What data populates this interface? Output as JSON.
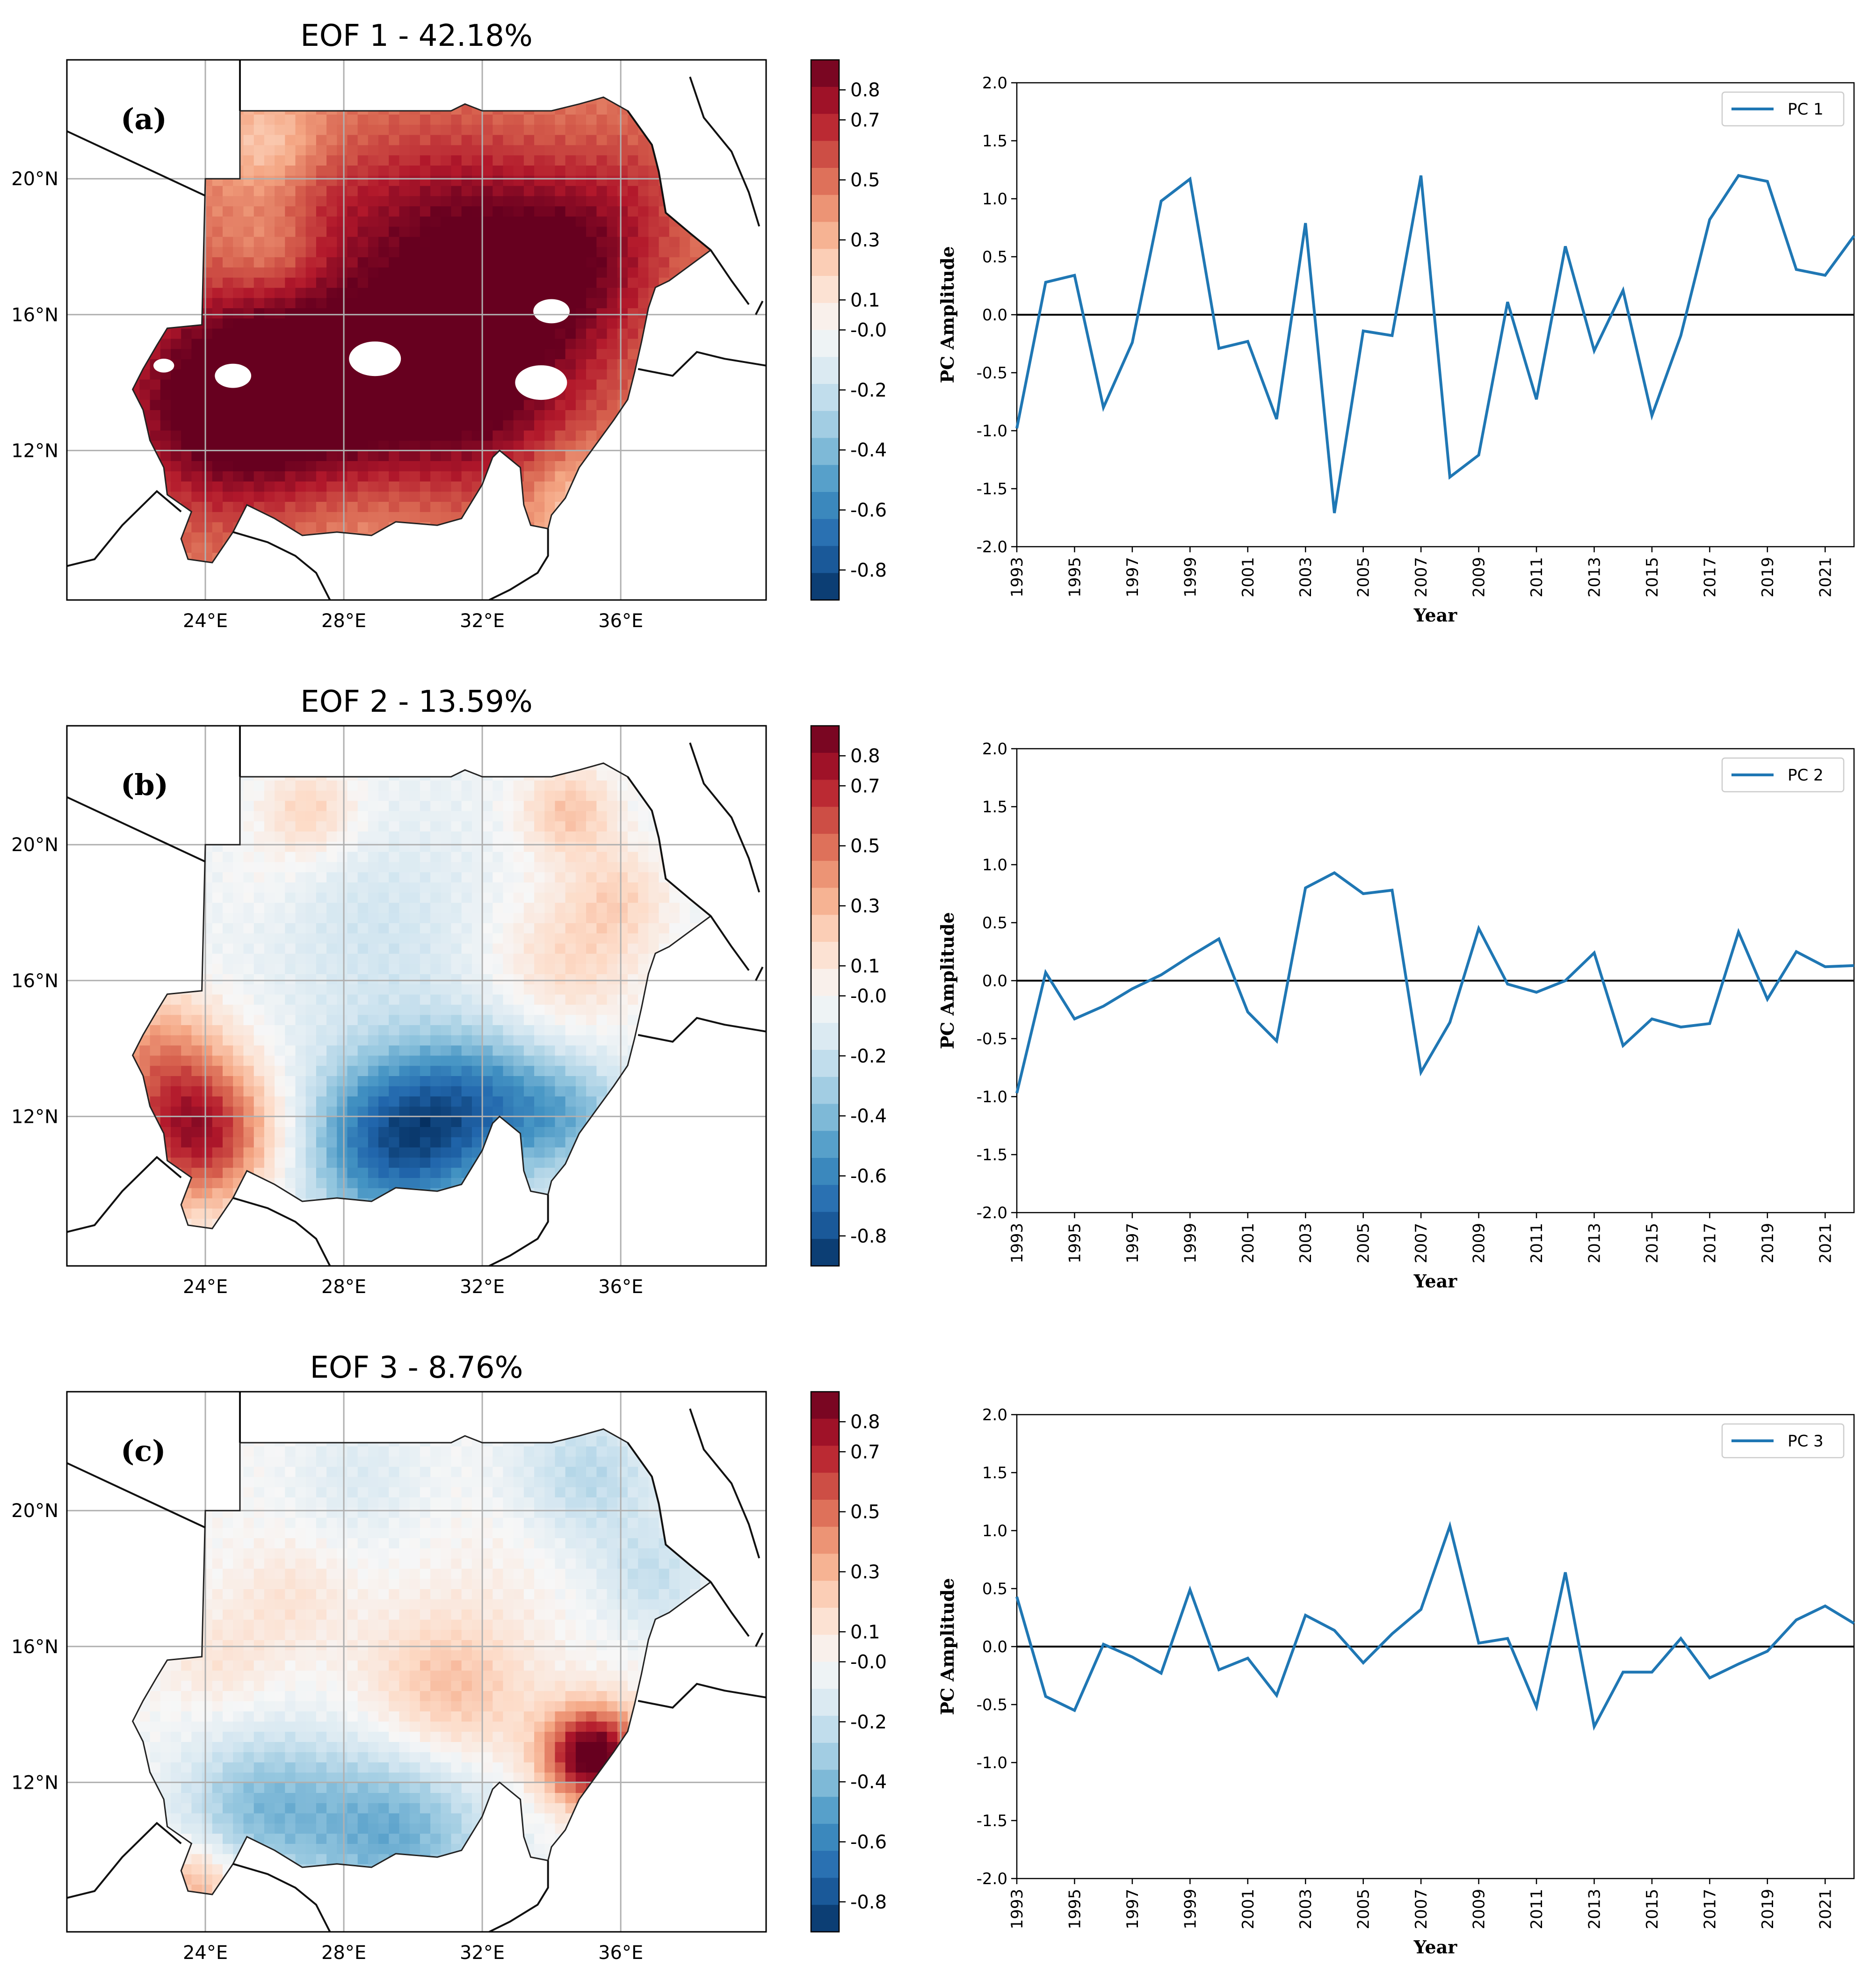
{
  "map_panels": [
    {
      "title": "EOF 1 - 42.18%",
      "tag": "(a)",
      "pattern": "eof1",
      "colorbar_ticks": [
        "0.8",
        "0.7",
        "0.5",
        "0.3",
        "0.1",
        "-0.0",
        "-0.2",
        "-0.4",
        "-0.6",
        "-0.8"
      ],
      "lat_labels": [
        "20°N",
        "16°N",
        "12°N"
      ],
      "lon_labels": [
        "24°E",
        "28°E",
        "32°E",
        "36°E"
      ]
    },
    {
      "title": "EOF 2 - 13.59%",
      "tag": "(b)",
      "pattern": "eof2",
      "colorbar_ticks": [
        "0.8",
        "0.7",
        "0.5",
        "0.3",
        "0.1",
        "-0.0",
        "-0.2",
        "-0.4",
        "-0.6",
        "-0.8"
      ],
      "lat_labels": [
        "20°N",
        "16°N",
        "12°N"
      ],
      "lon_labels": [
        "24°E",
        "28°E",
        "32°E",
        "36°E"
      ]
    },
    {
      "title": "EOF 3 - 8.76%",
      "tag": "(c)",
      "pattern": "eof3",
      "colorbar_ticks": [
        "0.8",
        "0.7",
        "0.5",
        "0.3",
        "0.1",
        "-0.0",
        "-0.2",
        "-0.4",
        "-0.6",
        "-0.8"
      ],
      "lat_labels": [
        "20°N",
        "16°N",
        "12°N"
      ],
      "lon_labels": [
        "24°E",
        "28°E",
        "32°E",
        "36°E"
      ]
    }
  ],
  "chart_data": [
    {
      "type": "line",
      "xlabel": "Year",
      "ylabel": "PC Amplitude",
      "ylim": [
        -2.0,
        2.0
      ],
      "xlim": [
        1993,
        2022
      ],
      "y_ticks": [
        "2.0",
        "1.5",
        "1.0",
        "0.5",
        "0.0",
        "-0.5",
        "-1.0",
        "-1.5",
        "-2.0"
      ],
      "x_ticks": [
        "1993",
        "1995",
        "1997",
        "1999",
        "2001",
        "2003",
        "2005",
        "2007",
        "2009",
        "2011",
        "2013",
        "2015",
        "2017",
        "2019",
        "2021"
      ],
      "legend_position": "top-right",
      "series_color": "#1f77b4",
      "series": [
        {
          "name": "PC 1",
          "x": [
            1993,
            1994,
            1995,
            1996,
            1997,
            1998,
            1999,
            2000,
            2001,
            2002,
            2003,
            2004,
            2005,
            2006,
            2007,
            2008,
            2009,
            2010,
            2011,
            2012,
            2013,
            2014,
            2015,
            2016,
            2017,
            2018,
            2019,
            2020,
            2021,
            2022
          ],
          "values": [
            -0.98,
            0.28,
            0.34,
            -0.8,
            -0.24,
            0.98,
            1.17,
            -0.29,
            -0.23,
            -0.9,
            0.79,
            -1.71,
            -0.14,
            -0.18,
            1.2,
            -1.4,
            -1.21,
            0.11,
            -0.73,
            0.59,
            -0.31,
            0.21,
            -0.87,
            -0.18,
            0.82,
            1.2,
            1.15,
            0.39,
            0.34,
            0.68
          ]
        }
      ]
    },
    {
      "type": "line",
      "xlabel": "Year",
      "ylabel": "PC Amplitude",
      "ylim": [
        -2.0,
        2.0
      ],
      "xlim": [
        1993,
        2022
      ],
      "y_ticks": [
        "2.0",
        "1.5",
        "1.0",
        "0.5",
        "0.0",
        "-0.5",
        "-1.0",
        "-1.5",
        "-2.0"
      ],
      "x_ticks": [
        "1993",
        "1995",
        "1997",
        "1999",
        "2001",
        "2003",
        "2005",
        "2007",
        "2009",
        "2011",
        "2013",
        "2015",
        "2017",
        "2019",
        "2021"
      ],
      "legend_position": "top-right",
      "series_color": "#1f77b4",
      "series": [
        {
          "name": "PC 2",
          "x": [
            1993,
            1994,
            1995,
            1996,
            1997,
            1998,
            1999,
            2000,
            2001,
            2002,
            2003,
            2004,
            2005,
            2006,
            2007,
            2008,
            2009,
            2010,
            2011,
            2012,
            2013,
            2014,
            2015,
            2016,
            2017,
            2018,
            2019,
            2020,
            2021,
            2022
          ],
          "values": [
            -0.97,
            0.07,
            -0.33,
            -0.22,
            -0.07,
            0.05,
            0.21,
            0.36,
            -0.27,
            -0.52,
            0.8,
            0.93,
            0.75,
            0.78,
            -0.79,
            -0.36,
            0.45,
            -0.03,
            -0.1,
            0.0,
            0.24,
            -0.56,
            -0.33,
            -0.4,
            -0.37,
            0.42,
            -0.16,
            0.25,
            0.12,
            0.13
          ]
        }
      ]
    },
    {
      "type": "line",
      "xlabel": "Year",
      "ylabel": "PC Amplitude",
      "ylim": [
        -2.0,
        2.0
      ],
      "xlim": [
        1993,
        2022
      ],
      "y_ticks": [
        "2.0",
        "1.5",
        "1.0",
        "0.5",
        "0.0",
        "-0.5",
        "-1.0",
        "-1.5",
        "-2.0"
      ],
      "x_ticks": [
        "1993",
        "1995",
        "1997",
        "1999",
        "2001",
        "2003",
        "2005",
        "2007",
        "2009",
        "2011",
        "2013",
        "2015",
        "2017",
        "2019",
        "2021"
      ],
      "legend_position": "top-right",
      "series_color": "#1f77b4",
      "series": [
        {
          "name": "PC 3",
          "x": [
            1993,
            1994,
            1995,
            1996,
            1997,
            1998,
            1999,
            2000,
            2001,
            2002,
            2003,
            2004,
            2005,
            2006,
            2007,
            2008,
            2009,
            2010,
            2011,
            2012,
            2013,
            2014,
            2015,
            2016,
            2017,
            2018,
            2019,
            2020,
            2021,
            2022
          ],
          "values": [
            0.43,
            -0.43,
            -0.55,
            0.02,
            -0.09,
            -0.23,
            0.49,
            -0.2,
            -0.1,
            -0.42,
            0.27,
            0.14,
            -0.14,
            0.11,
            0.32,
            1.04,
            0.03,
            0.07,
            -0.52,
            0.64,
            -0.69,
            -0.22,
            -0.22,
            0.07,
            -0.27,
            -0.15,
            -0.04,
            0.23,
            0.35,
            0.2
          ]
        }
      ]
    }
  ]
}
